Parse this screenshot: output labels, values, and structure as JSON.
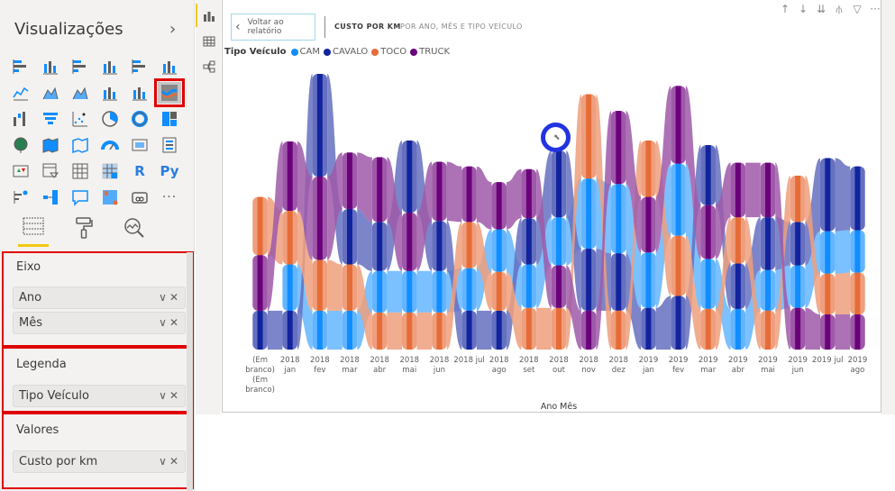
{
  "viz_pane": {
    "title": "Visualizações",
    "collapse_icon": "chevron-right-icon",
    "visual_icons": [
      "stacked-bar-icon",
      "stacked-column-icon",
      "clustered-bar-icon",
      "clustered-column-icon",
      "100-stacked-bar-icon",
      "100-stacked-column-icon",
      "line-chart-icon",
      "area-chart-icon",
      "stacked-area-icon",
      "line-clustered-column-icon",
      "line-stacked-column-icon",
      "ribbon-chart-icon",
      "waterfall-icon",
      "funnel-icon",
      "scatter-icon",
      "pie-chart-icon",
      "donut-chart-icon",
      "treemap-icon",
      "map-icon",
      "filled-map-icon",
      "shape-map-icon",
      "gauge-icon",
      "card-icon",
      "multi-row-card-icon",
      "kpi-icon",
      "slicer-icon",
      "table-icon",
      "matrix-icon",
      "r-visual-icon",
      "python-visual-icon",
      "key-influencers-icon",
      "decomposition-tree-icon",
      "qa-icon",
      "smart-narrative-icon",
      "paginated-report-icon",
      "more-visuals-icon"
    ],
    "r_label": "R",
    "py_label": "Py",
    "more_label": "···",
    "selected_visual": "ribbon-chart-icon",
    "tabs": [
      "fields-icon",
      "format-paint-roller-icon",
      "analytics-icon"
    ],
    "wells": {
      "axis": {
        "label": "Eixo",
        "fields": [
          "Ano",
          "Mês"
        ]
      },
      "legend": {
        "label": "Legenda",
        "fields": [
          "Tipo Veículo"
        ]
      },
      "values": {
        "label": "Valores",
        "fields": [
          "Custo por km"
        ]
      }
    }
  },
  "side_strip": [
    "report-view-icon",
    "data-view-icon",
    "model-view-icon"
  ],
  "canvas": {
    "back_button": "Voltar ao relatório",
    "visual_title": "CUSTO POR KM",
    "visual_subtitle": "POR ANO, MÊS E TIPO VEÍCULO",
    "toolbar": [
      {
        "icon": "sort-up-icon",
        "glyph": "↑"
      },
      {
        "icon": "sort-down-icon",
        "glyph": "↓"
      },
      {
        "icon": "drill-next-level-icon",
        "glyph": "⇊"
      },
      {
        "icon": "expand-hierarchy-icon",
        "glyph": "⫛"
      },
      {
        "icon": "filter-icon",
        "glyph": "▽"
      },
      {
        "icon": "more-options-icon",
        "glyph": "···"
      }
    ]
  },
  "chart_data": {
    "type": "ribbon",
    "title": "CUSTO POR KM",
    "subtitle": "POR ANO, MÊS E TIPO VEÍCULO",
    "xlabel": "Ano Mês",
    "ylabel": "",
    "legend_title": "Tipo Veículo",
    "legend_position": "top-left",
    "grid": false,
    "categories": [
      "(Em branco) (Em branco)",
      "2018 jan",
      "2018 fev",
      "2018 mar",
      "2018 abr",
      "2018 mai",
      "2018 jun",
      "2018 jul",
      "2018 ago",
      "2018 set",
      "2018 out",
      "2018 nov",
      "2018 dez",
      "2019 jan",
      "2019 fev",
      "2019 mar",
      "2019 abr",
      "2019 mai",
      "2019 jun",
      "2019 jul",
      "2019 ago"
    ],
    "category_labels": [
      [
        "(Em",
        "branco)",
        "(Em",
        "branco)"
      ],
      [
        "2018",
        "jan"
      ],
      [
        "2018",
        "fev"
      ],
      [
        "2018",
        "mar"
      ],
      [
        "2018",
        "abr"
      ],
      [
        "2018",
        "mai"
      ],
      [
        "2018",
        "jun"
      ],
      [
        "2018 jul"
      ],
      [
        "2018",
        "ago"
      ],
      [
        "2018",
        "set"
      ],
      [
        "2018",
        "out"
      ],
      [
        "2018",
        "nov"
      ],
      [
        "2018",
        "dez"
      ],
      [
        "2019",
        "jan"
      ],
      [
        "2019",
        "fev"
      ],
      [
        "2019",
        "mar"
      ],
      [
        "2019",
        "abr"
      ],
      [
        "2019",
        "mai"
      ],
      [
        "2019",
        "jun"
      ],
      [
        "2019 jul"
      ],
      [
        "2019",
        "ago"
      ]
    ],
    "series": [
      {
        "name": "CAM",
        "color": "#118dff",
        "values": [
          0,
          0.5,
          0.42,
          0.42,
          0.45,
          0.45,
          0.45,
          0.46,
          0.46,
          0.47,
          0.52,
          0.76,
          0.75,
          0.6,
          0.78,
          0.54,
          0.44,
          0.44,
          0.46,
          0.46,
          0.46
        ]
      },
      {
        "name": "CAVALO",
        "color": "#12239e",
        "values": [
          0.42,
          0.42,
          1.11,
          0.6,
          0.53,
          0.78,
          0.54,
          0.42,
          0.42,
          0.5,
          0.72,
          0.67,
          0.62,
          0.45,
          0.58,
          0.65,
          0.49,
          0.57,
          0.47,
          0.79,
          0.69
        ]
      },
      {
        "name": "TOCO",
        "color": "#e66c37",
        "values": [
          0.63,
          0.58,
          0.55,
          0.5,
          0.4,
          0.4,
          0.4,
          0.5,
          0.42,
          0.45,
          0.45,
          0.91,
          0.42,
          0.61,
          0.65,
          0.44,
          0.5,
          0.42,
          0.5,
          0.44,
          0.45
        ]
      },
      {
        "name": "TRUCK",
        "color": "#6b007b",
        "values": [
          0.6,
          0.75,
          0.9,
          0.61,
          0.7,
          0.63,
          0.64,
          0.6,
          0.51,
          0.53,
          0.46,
          0.42,
          0.79,
          0.6,
          0.84,
          0.58,
          0.59,
          0.59,
          0.45,
          0.38,
          0.38
        ]
      }
    ],
    "ylim": [
      0,
      3.0
    ],
    "notes": "Values are relative (no y-axis shown); ribbons ranked per column, smallest at bottom."
  }
}
